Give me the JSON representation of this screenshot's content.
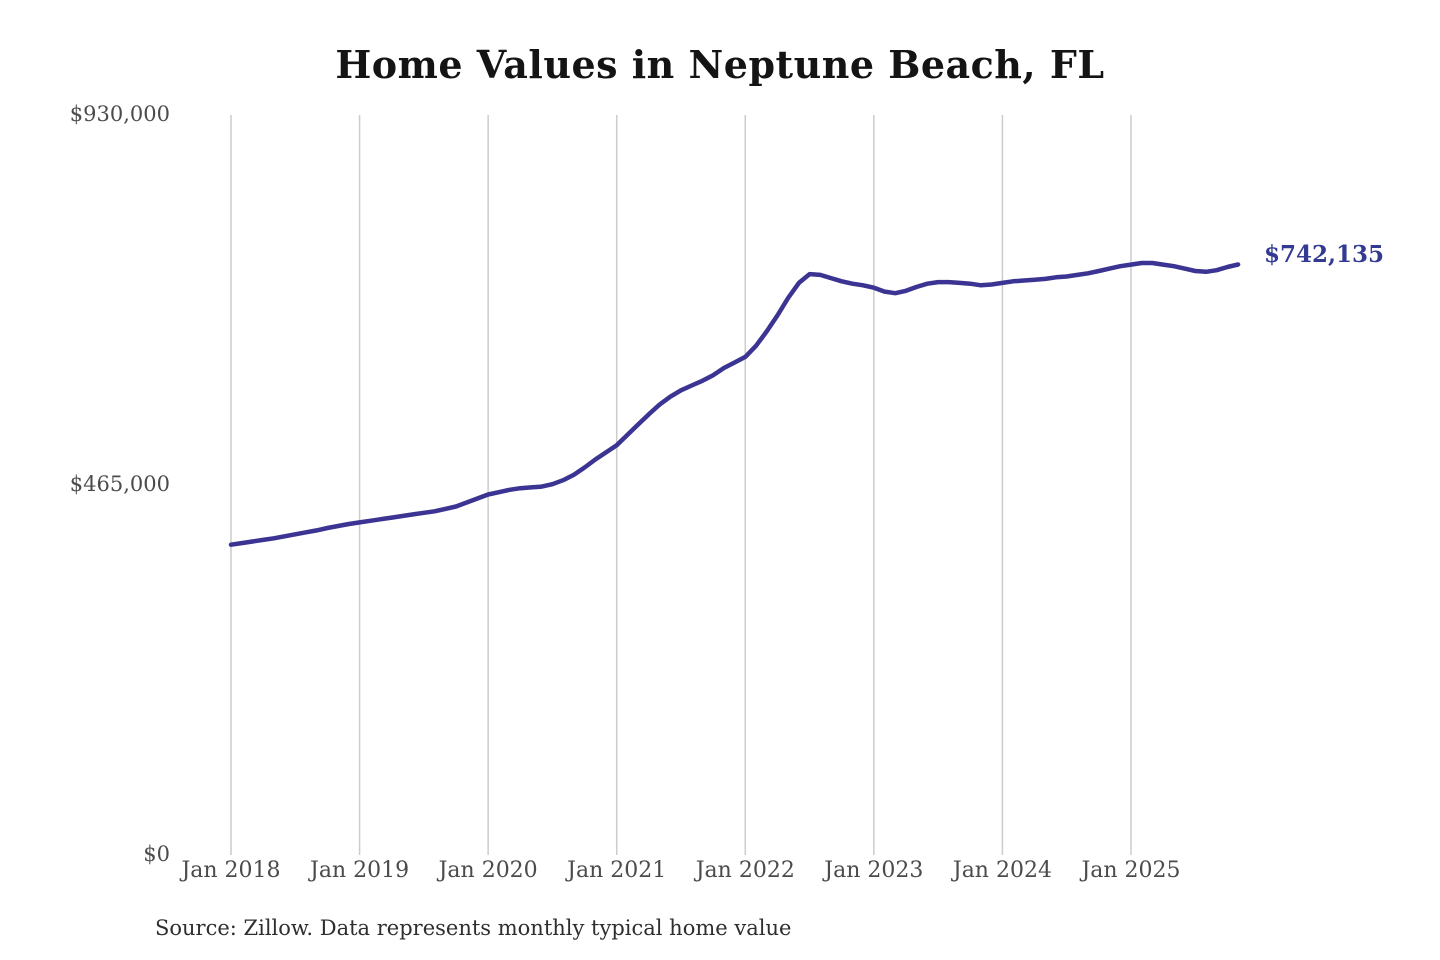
{
  "title": "Home Values in Neptune Beach, FL",
  "annotation": {
    "end_value_label": "$742,135"
  },
  "source_note": "Source: Zillow. Data represents monthly typical home value",
  "colors": {
    "line": "#3b3492",
    "end_label": "#333a91",
    "gridline": "#cccccc",
    "axis_text": "#4b4b4b",
    "title_text": "#141414"
  },
  "chart_data": {
    "type": "line",
    "title": "Home Values in Neptune Beach, FL",
    "series_name": "Monthly typical home value",
    "frequency": "monthly",
    "x_start": "2018-01",
    "x_end": "2025-11",
    "x_ticks": [
      "Jan 2018",
      "Jan 2019",
      "Jan 2020",
      "Jan 2021",
      "Jan 2022",
      "Jan 2023",
      "Jan 2024",
      "Jan 2025"
    ],
    "y_ticks": [
      {
        "label": "$930,000",
        "value": 930000
      },
      {
        "label": "$465,000",
        "value": 465000
      },
      {
        "label": "$0",
        "value": 0
      }
    ],
    "ylim": [
      0,
      930000
    ],
    "grid": "vertical-only",
    "legend": "none",
    "last_value": 742135,
    "values": [
      390000,
      392000,
      394000,
      396000,
      398000,
      400500,
      403000,
      405500,
      408000,
      411000,
      413500,
      416000,
      418000,
      420000,
      422000,
      424000,
      426000,
      428000,
      430000,
      432000,
      435000,
      438000,
      443000,
      448000,
      453000,
      456000,
      459000,
      461000,
      462000,
      463000,
      466000,
      471000,
      478000,
      487000,
      497000,
      506000,
      515000,
      528000,
      541000,
      554000,
      566000,
      576000,
      584000,
      590000,
      596000,
      603000,
      612000,
      619000,
      626000,
      640000,
      658000,
      678000,
      700000,
      719000,
      730000,
      729000,
      725000,
      721000,
      718000,
      716000,
      713000,
      708000,
      706000,
      709000,
      714000,
      718000,
      720000,
      720000,
      719000,
      718000,
      716000,
      717000,
      719000,
      721000,
      722000,
      723000,
      724000,
      726000,
      727000,
      729000,
      731000,
      734000,
      737000,
      740000,
      742000,
      744000,
      744000,
      742000,
      740000,
      737000,
      734000,
      733000,
      735000,
      739000,
      742135
    ]
  }
}
